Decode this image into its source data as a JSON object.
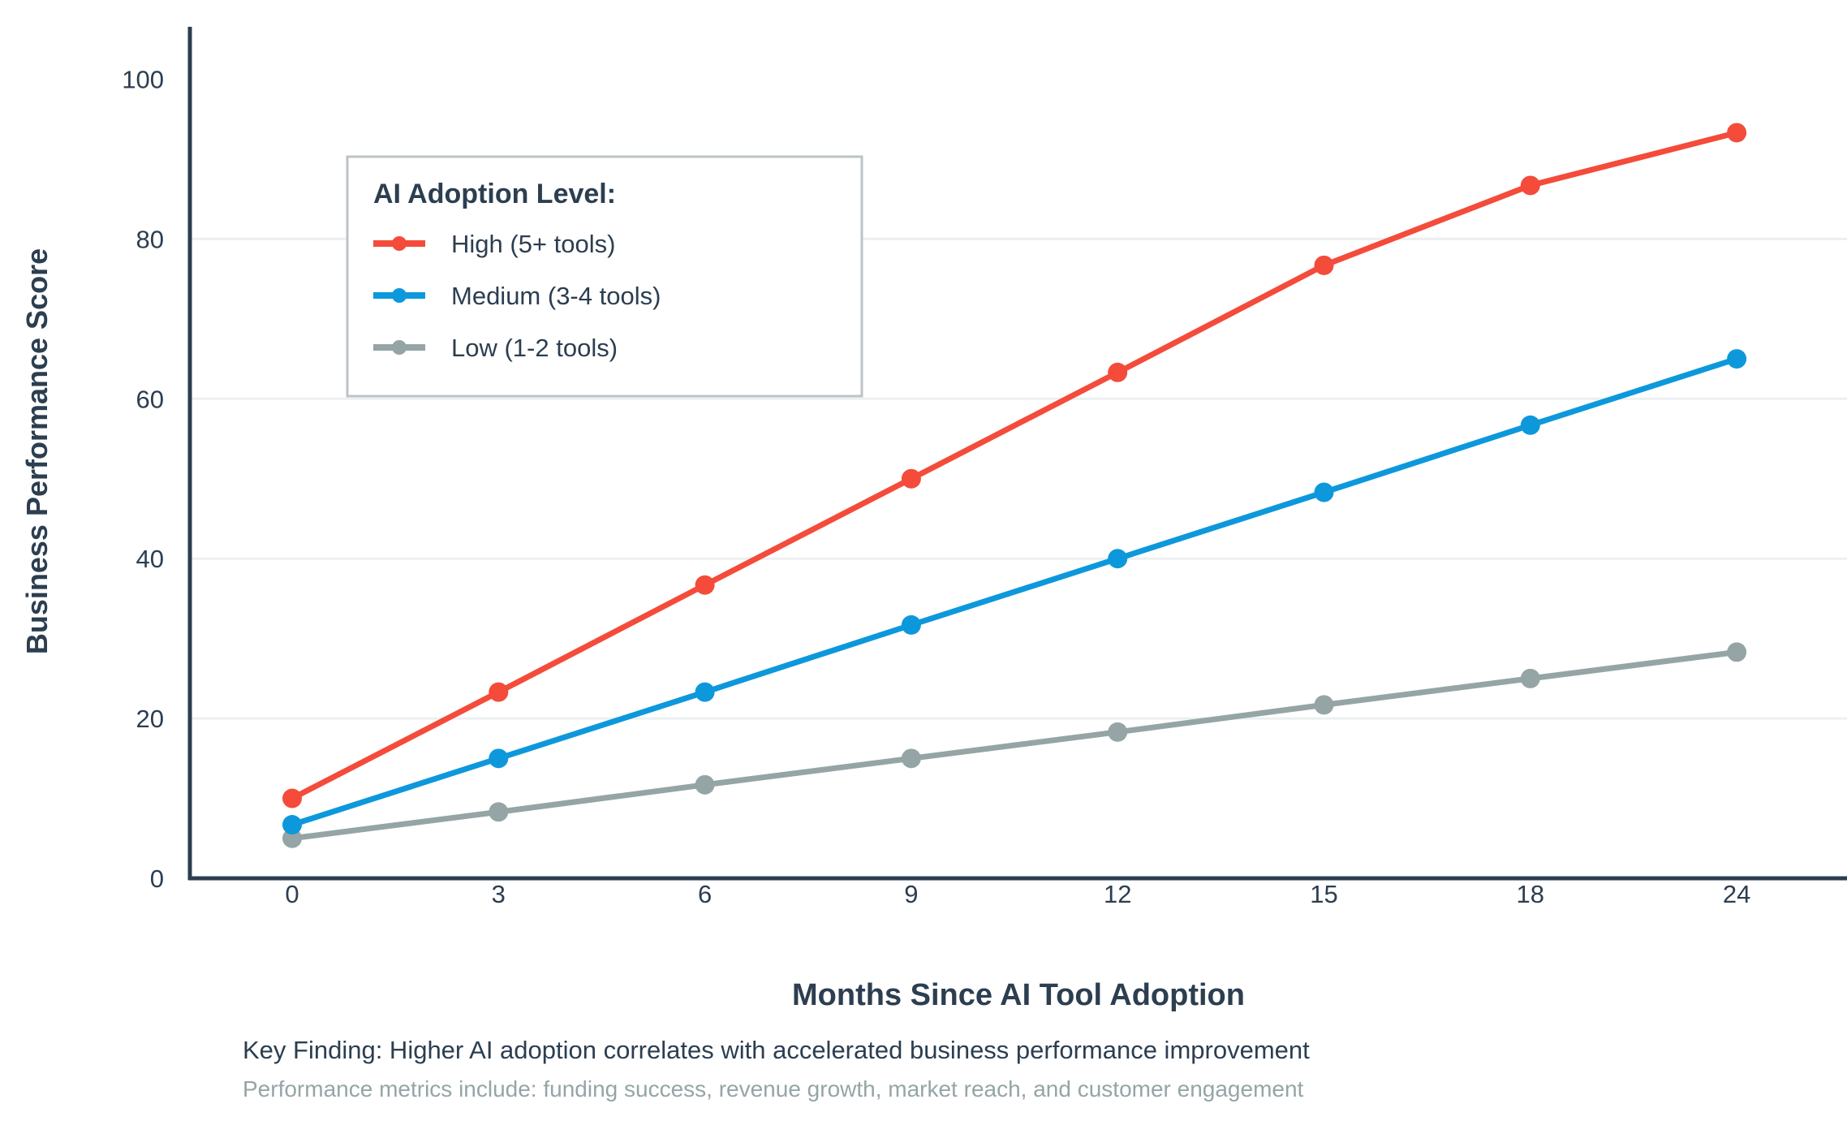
{
  "chart_data": {
    "type": "line",
    "title": "",
    "xlabel": "Months Since AI Tool Adoption",
    "ylabel": "Business Performance Score",
    "x": [
      "0",
      "3",
      "6",
      "9",
      "12",
      "15",
      "18",
      "24"
    ],
    "ylim": [
      0,
      100
    ],
    "yticks": [
      "0",
      "20",
      "40",
      "60",
      "80",
      "100"
    ],
    "grid": true,
    "legend": {
      "title": "AI Adoption Level:",
      "placement": "top-left"
    },
    "series": [
      {
        "name": "High (5+ tools)",
        "color": "#f44b3b",
        "values": [
          10,
          23.3,
          36.7,
          50,
          63.3,
          76.7,
          86.7,
          93.3
        ]
      },
      {
        "name": "Medium (3-4 tools)",
        "color": "#0d98dc",
        "values": [
          6.7,
          15,
          23.3,
          31.7,
          40,
          48.3,
          56.7,
          65
        ]
      },
      {
        "name": "Low (1-2 tools)",
        "color": "#95a5a6",
        "values": [
          5,
          8.3,
          11.7,
          15,
          18.3,
          21.7,
          25,
          28.3
        ]
      }
    ],
    "annotations": [
      "Key Finding: Higher AI adoption correlates with accelerated business performance improvement",
      "Performance metrics include: funding success, revenue growth, market reach, and customer engagement"
    ]
  }
}
